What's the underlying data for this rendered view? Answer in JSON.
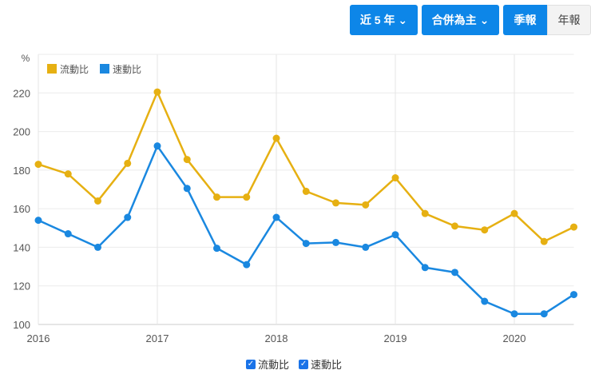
{
  "toolbar": {
    "range": "近 5 年",
    "basis": "合併為主",
    "quarterly": "季報",
    "annual": "年報",
    "chevron_icon": "chevron-down-icon",
    "active": "季報"
  },
  "chart_data": {
    "type": "line",
    "ylabel": "%",
    "ylim": [
      100,
      240
    ],
    "yticks": [
      100,
      120,
      140,
      160,
      180,
      200,
      220
    ],
    "xlim": [
      2016,
      2020.5
    ],
    "xticks": [
      "2016",
      "2017",
      "2018",
      "2019",
      "2020"
    ],
    "grid": true,
    "legend_position": "top-left",
    "x": [
      2016,
      2016.25,
      2016.5,
      2016.75,
      2017,
      2017.25,
      2017.5,
      2017.75,
      2018,
      2018.25,
      2018.5,
      2018.75,
      2019,
      2019.25,
      2019.5,
      2019.75,
      2020,
      2020.25,
      2020.5
    ],
    "series": [
      {
        "name": "流動比",
        "color": "#e6b012",
        "values": [
          183,
          178,
          164,
          183.5,
          220.5,
          185.5,
          166,
          166,
          196.5,
          169,
          163,
          162,
          176,
          157.5,
          151,
          149,
          157.5,
          143,
          150.5
        ]
      },
      {
        "name": "速動比",
        "color": "#1a88e0",
        "values": [
          154,
          147,
          140,
          155.5,
          192.5,
          170.5,
          139.5,
          131,
          155.5,
          142,
          142.5,
          140,
          146.5,
          129.5,
          127,
          112,
          105.5,
          105.5,
          115.5
        ]
      }
    ]
  }
}
